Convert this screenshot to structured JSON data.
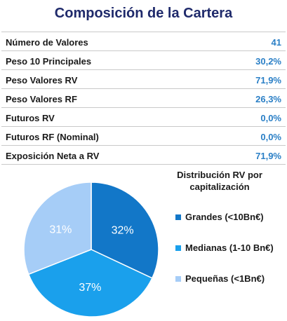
{
  "title": "Composición de la Cartera",
  "table": [
    {
      "label": "Número de Valores",
      "value": "41"
    },
    {
      "label": "Peso 10 Principales",
      "value": "30,2%"
    },
    {
      "label": "Peso Valores RV",
      "value": "71,9%"
    },
    {
      "label": "Peso Valores RF",
      "value": "26,3%"
    },
    {
      "label": "Futuros RV",
      "value": "0,0%"
    },
    {
      "label": "Futuros RF (Nominal)",
      "value": "0,0%"
    },
    {
      "label": "Exposición Neta a RV",
      "value": "71,9%"
    }
  ],
  "colors": {
    "title": "#1f2a6b",
    "value": "#2a7fc6"
  },
  "chart_data": {
    "type": "pie",
    "title": "Distribución RV por capitalización",
    "legend_placement": "right",
    "slices": [
      {
        "name": "Grandes (<10Bn€)",
        "value": 32,
        "label": "32%",
        "color": "#1277c8"
      },
      {
        "name": "Medianas (1-10 Bn€)",
        "value": 37,
        "label": "37%",
        "color": "#1aa0ec"
      },
      {
        "name": "Pequeñas (<1Bn€)",
        "value": 31,
        "label": "31%",
        "color": "#a6cdf7"
      }
    ]
  }
}
